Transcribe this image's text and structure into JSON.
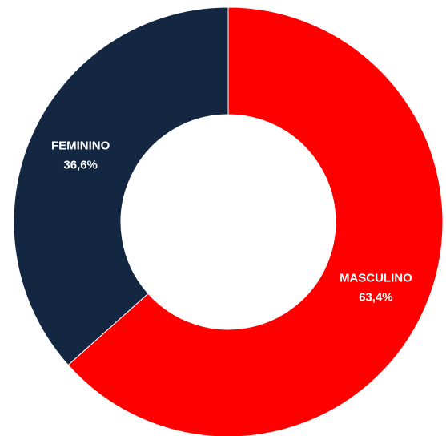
{
  "chart_data": {
    "type": "donut",
    "categories": [
      "MASCULINO",
      "FEMININO"
    ],
    "values": [
      63.4,
      36.6
    ],
    "value_labels": [
      "63,4%",
      "36,6%"
    ],
    "colors": [
      "#ff0000",
      "#132743"
    ]
  }
}
